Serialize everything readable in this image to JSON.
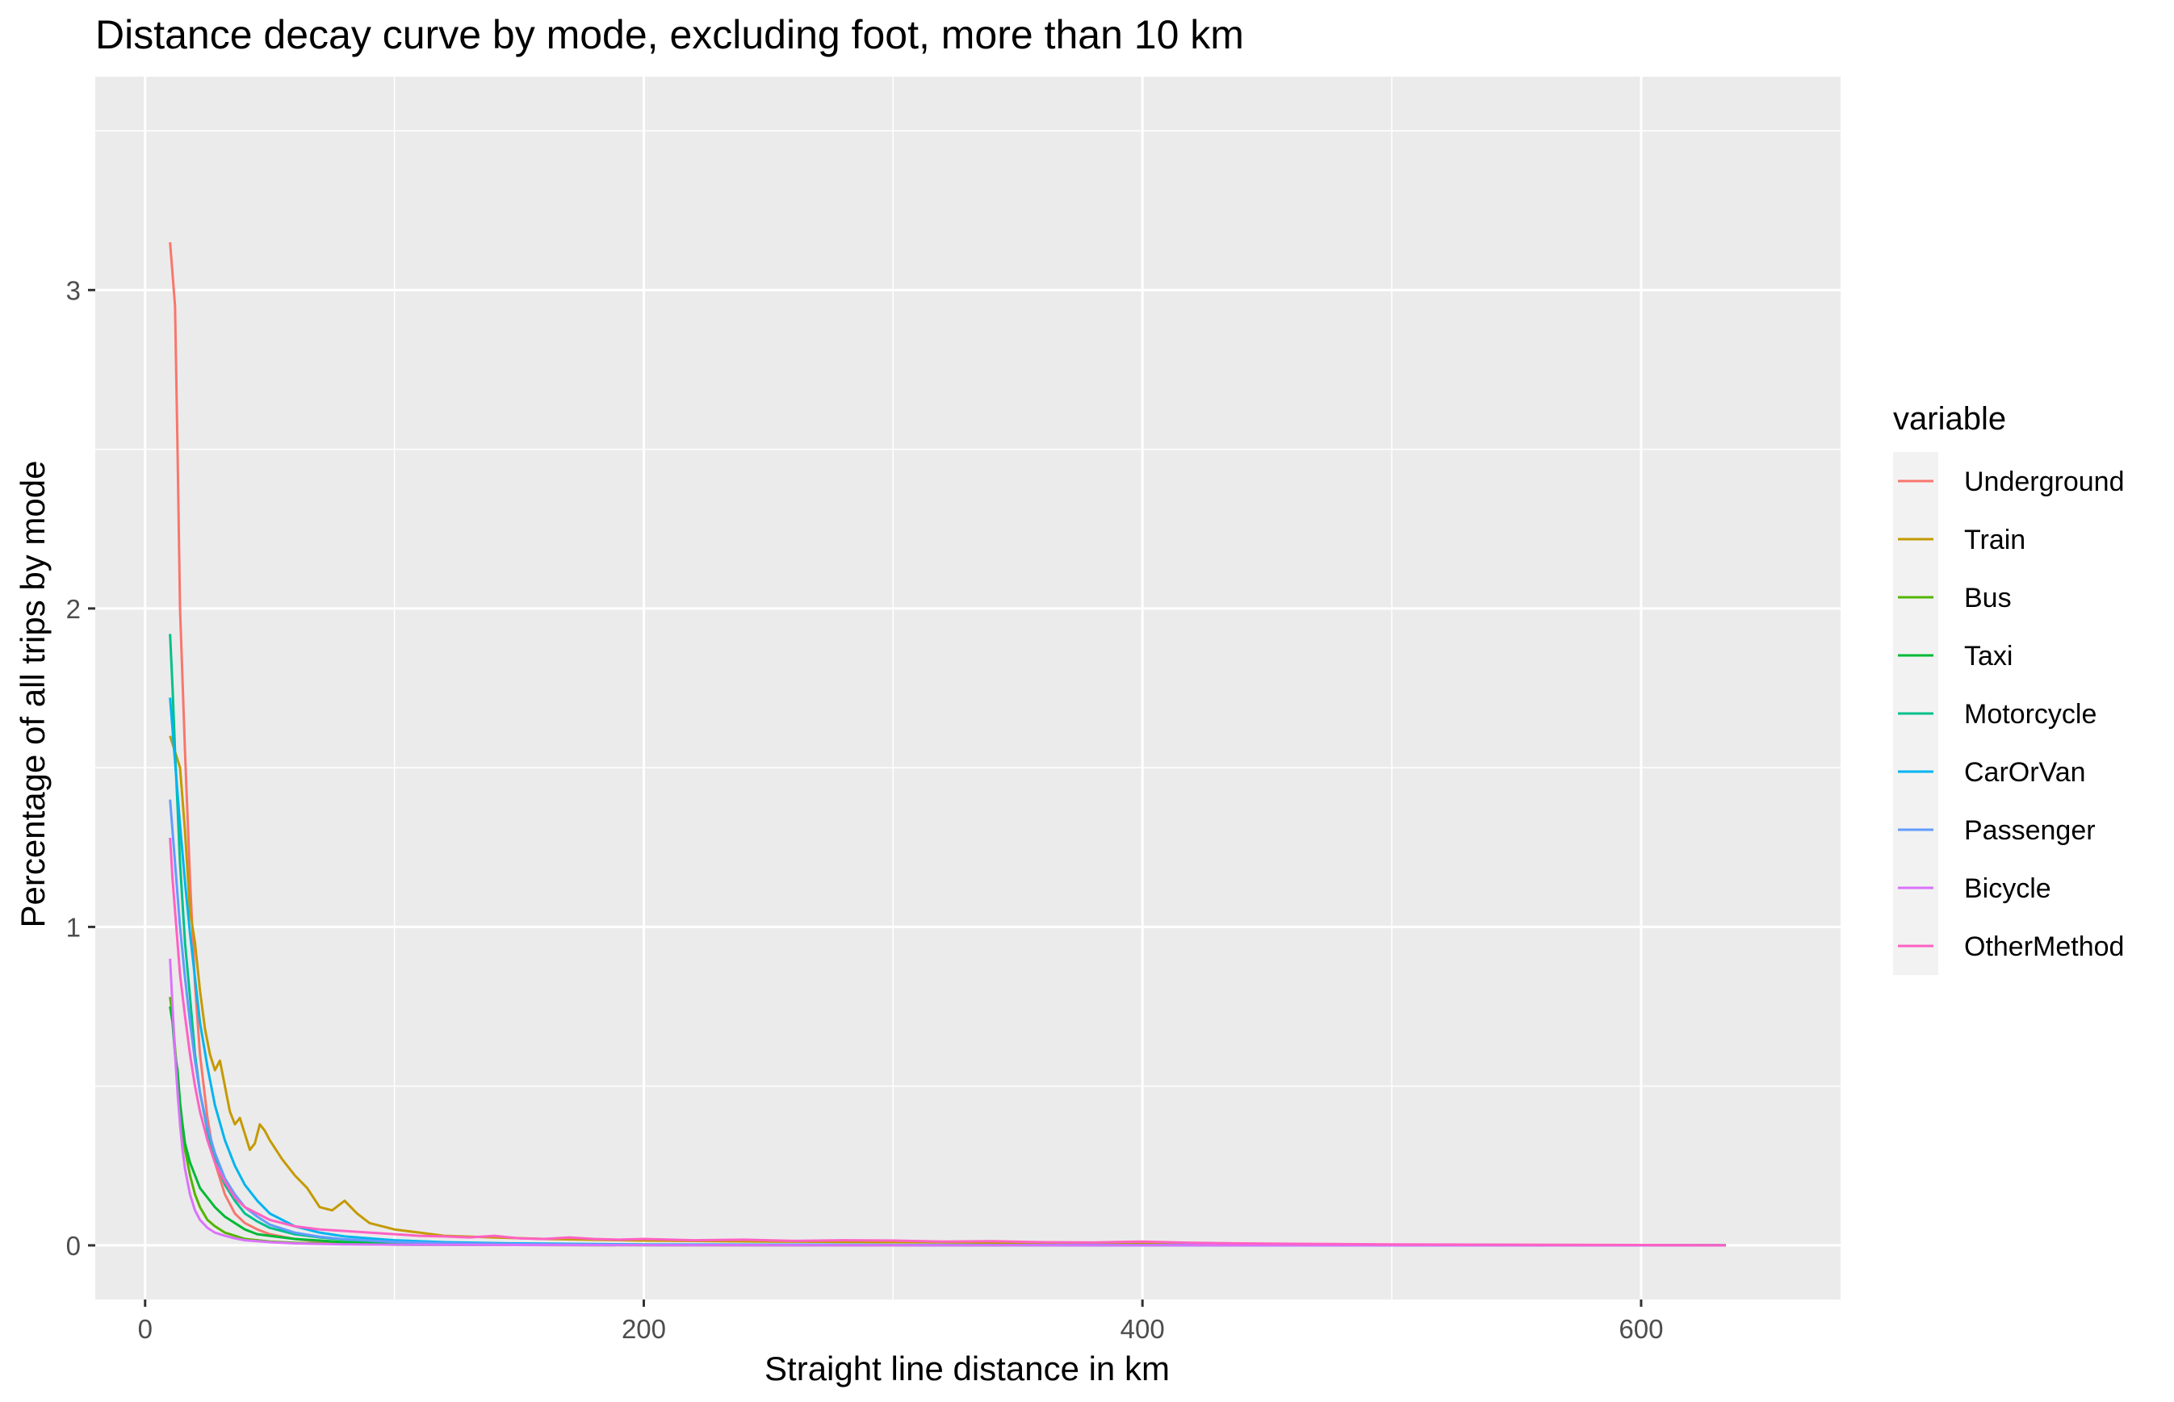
{
  "chart_data": {
    "type": "line",
    "title": "Distance decay curve by mode, excluding foot, more than 10 km",
    "xlabel": "Straight line distance in km",
    "ylabel": "Percentage of all trips by mode",
    "xlim": [
      -20,
      680
    ],
    "ylim": [
      -0.17,
      3.67
    ],
    "x_ticks": [
      0,
      200,
      400,
      600
    ],
    "x_tick_labels": [
      "0",
      "200",
      "400",
      "600"
    ],
    "y_ticks": [
      0,
      1,
      2,
      3
    ],
    "y_tick_labels": [
      "0",
      "1",
      "2",
      "3"
    ],
    "grid": true,
    "panel_background": "#ebebeb",
    "grid_color": "#ffffff",
    "legend": {
      "title": "variable",
      "position": "right"
    },
    "series": [
      {
        "name": "Underground",
        "color": "#F8766D",
        "x": [
          10,
          11,
          12,
          13,
          14,
          16,
          18,
          20,
          22,
          25,
          28,
          32,
          36,
          40,
          45,
          50,
          60,
          70,
          80,
          100,
          120,
          150,
          200,
          300,
          400,
          500,
          600,
          634
        ],
        "y": [
          3.15,
          3.05,
          2.95,
          2.5,
          2.0,
          1.55,
          1.15,
          0.82,
          0.6,
          0.4,
          0.26,
          0.16,
          0.1,
          0.07,
          0.05,
          0.035,
          0.02,
          0.012,
          0.008,
          0.005,
          0.003,
          0.002,
          0.001,
          0.0005,
          0.0002,
          0.0001,
          0.0,
          0.0
        ]
      },
      {
        "name": "Train",
        "color": "#C49A00",
        "x": [
          10,
          12,
          14,
          16,
          18,
          20,
          22,
          24,
          26,
          28,
          30,
          32,
          34,
          36,
          38,
          40,
          42,
          44,
          46,
          48,
          50,
          55,
          60,
          65,
          70,
          75,
          80,
          85,
          90,
          100,
          110,
          120,
          140,
          160,
          200,
          250,
          300,
          350,
          400,
          450,
          500,
          600,
          634
        ],
        "y": [
          1.6,
          1.55,
          1.5,
          1.3,
          1.05,
          0.95,
          0.8,
          0.68,
          0.6,
          0.55,
          0.58,
          0.5,
          0.42,
          0.38,
          0.4,
          0.35,
          0.3,
          0.32,
          0.38,
          0.36,
          0.33,
          0.27,
          0.22,
          0.18,
          0.12,
          0.11,
          0.14,
          0.1,
          0.07,
          0.05,
          0.04,
          0.03,
          0.025,
          0.02,
          0.015,
          0.012,
          0.01,
          0.008,
          0.006,
          0.004,
          0.002,
          0.001,
          0.0
        ]
      },
      {
        "name": "Bus",
        "color": "#53B400",
        "x": [
          10,
          11,
          12,
          13,
          14,
          15,
          16,
          18,
          20,
          22,
          25,
          28,
          32,
          36,
          40,
          50,
          60,
          80,
          100,
          150,
          200,
          300,
          400,
          500,
          600,
          634
        ],
        "y": [
          0.78,
          0.72,
          0.62,
          0.52,
          0.44,
          0.36,
          0.3,
          0.22,
          0.16,
          0.12,
          0.08,
          0.06,
          0.04,
          0.03,
          0.02,
          0.012,
          0.008,
          0.004,
          0.002,
          0.001,
          0.0005,
          0.0002,
          0.0001,
          0.0,
          0.0,
          0.0
        ]
      },
      {
        "name": "Taxi",
        "color": "#00B935",
        "x": [
          10,
          11,
          12,
          13,
          14,
          15,
          16,
          18,
          20,
          22,
          25,
          28,
          32,
          36,
          40,
          45,
          50,
          60,
          80,
          100,
          150,
          200,
          300,
          400,
          500,
          600,
          634
        ],
        "y": [
          0.75,
          0.7,
          0.6,
          0.55,
          0.45,
          0.38,
          0.32,
          0.26,
          0.22,
          0.18,
          0.15,
          0.12,
          0.09,
          0.07,
          0.05,
          0.035,
          0.03,
          0.02,
          0.01,
          0.006,
          0.003,
          0.002,
          0.001,
          0.0005,
          0.0002,
          0.0,
          0.0
        ]
      },
      {
        "name": "Motorcycle",
        "color": "#00C08B",
        "x": [
          10,
          11,
          12,
          13,
          14,
          16,
          18,
          20,
          22,
          25,
          28,
          32,
          36,
          40,
          45,
          50,
          60,
          70,
          80,
          100,
          120,
          150,
          200,
          300,
          400,
          500,
          600,
          634
        ],
        "y": [
          1.92,
          1.75,
          1.55,
          1.38,
          1.2,
          0.95,
          0.78,
          0.6,
          0.48,
          0.36,
          0.27,
          0.19,
          0.14,
          0.1,
          0.075,
          0.055,
          0.035,
          0.025,
          0.018,
          0.01,
          0.007,
          0.004,
          0.002,
          0.001,
          0.0005,
          0.0002,
          0.0,
          0.0
        ]
      },
      {
        "name": "CarOrVan",
        "color": "#00B4EF",
        "x": [
          10,
          11,
          12,
          13,
          14,
          16,
          18,
          20,
          22,
          25,
          28,
          32,
          36,
          40,
          45,
          50,
          60,
          70,
          80,
          100,
          120,
          150,
          200,
          300,
          400,
          500,
          600,
          634
        ],
        "y": [
          1.72,
          1.62,
          1.52,
          1.42,
          1.32,
          1.14,
          0.98,
          0.84,
          0.7,
          0.56,
          0.44,
          0.33,
          0.25,
          0.19,
          0.14,
          0.1,
          0.06,
          0.04,
          0.028,
          0.016,
          0.01,
          0.006,
          0.003,
          0.0015,
          0.0007,
          0.0003,
          0.0001,
          0.0
        ]
      },
      {
        "name": "Passenger",
        "color": "#619CFF",
        "x": [
          10,
          11,
          12,
          13,
          14,
          16,
          18,
          20,
          22,
          25,
          28,
          32,
          36,
          40,
          45,
          50,
          60,
          70,
          80,
          100,
          120,
          150,
          200,
          300,
          400,
          500,
          600,
          634
        ],
        "y": [
          1.4,
          1.3,
          1.2,
          1.1,
          1.0,
          0.84,
          0.7,
          0.58,
          0.48,
          0.37,
          0.29,
          0.21,
          0.16,
          0.12,
          0.09,
          0.065,
          0.04,
          0.027,
          0.019,
          0.011,
          0.007,
          0.004,
          0.002,
          0.001,
          0.0005,
          0.0002,
          0.0001,
          0.0
        ]
      },
      {
        "name": "Bicycle",
        "color": "#DB72FB",
        "x": [
          10,
          11,
          12,
          13,
          14,
          15,
          16,
          18,
          20,
          22,
          25,
          28,
          32,
          36,
          40,
          50,
          60,
          80,
          100,
          150,
          200,
          300,
          400,
          500,
          600,
          634
        ],
        "y": [
          0.9,
          0.75,
          0.6,
          0.48,
          0.38,
          0.3,
          0.24,
          0.16,
          0.11,
          0.08,
          0.055,
          0.04,
          0.03,
          0.022,
          0.016,
          0.01,
          0.006,
          0.003,
          0.002,
          0.001,
          0.0005,
          0.0002,
          0.0001,
          0.0,
          0.0,
          0.0
        ]
      },
      {
        "name": "OtherMethod",
        "color": "#FF61C3",
        "x": [
          10,
          11,
          12,
          13,
          14,
          16,
          18,
          20,
          22,
          25,
          28,
          32,
          36,
          40,
          45,
          50,
          55,
          60,
          65,
          70,
          80,
          90,
          100,
          110,
          120,
          130,
          140,
          150,
          160,
          170,
          180,
          190,
          200,
          220,
          240,
          260,
          280,
          300,
          320,
          340,
          360,
          380,
          400,
          420,
          440,
          460,
          480,
          500,
          550,
          600,
          634
        ],
        "y": [
          1.28,
          1.15,
          1.05,
          0.95,
          0.85,
          0.72,
          0.6,
          0.5,
          0.42,
          0.33,
          0.26,
          0.2,
          0.15,
          0.12,
          0.1,
          0.08,
          0.07,
          0.06,
          0.055,
          0.05,
          0.045,
          0.04,
          0.035,
          0.03,
          0.028,
          0.025,
          0.03,
          0.022,
          0.02,
          0.025,
          0.02,
          0.018,
          0.02,
          0.016,
          0.018,
          0.014,
          0.016,
          0.015,
          0.012,
          0.013,
          0.01,
          0.009,
          0.012,
          0.008,
          0.006,
          0.005,
          0.004,
          0.003,
          0.002,
          0.001,
          0.0
        ]
      }
    ]
  }
}
